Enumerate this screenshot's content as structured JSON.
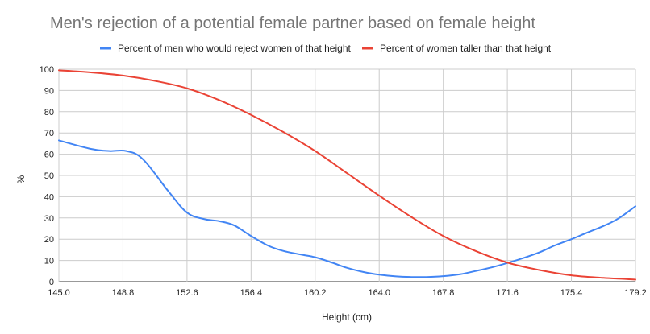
{
  "chart_data": {
    "type": "line",
    "title": "Men's rejection of a potential female partner based on female height",
    "xlabel": "Height (cm)",
    "ylabel": "%",
    "xlim": [
      145.0,
      179.2
    ],
    "ylim": [
      0,
      100
    ],
    "x_ticks": [
      "145.0",
      "148.8",
      "152.6",
      "156.4",
      "160.2",
      "164.0",
      "167.8",
      "171.6",
      "175.4",
      "179.2"
    ],
    "y_ticks": [
      "0",
      "10",
      "20",
      "30",
      "40",
      "50",
      "60",
      "70",
      "80",
      "90",
      "100"
    ],
    "grid": true,
    "legend_position": "top",
    "series": [
      {
        "name": "Percent of men who would reject women of that height",
        "color": "#4285f4",
        "x": [
          145.0,
          146.9,
          148.0,
          149.0,
          150.0,
          151.5,
          152.6,
          153.6,
          154.5,
          155.4,
          156.4,
          157.4,
          158.3,
          159.2,
          160.2,
          161.2,
          162.1,
          163.1,
          164.0,
          165.0,
          165.9,
          166.8,
          167.8,
          168.8,
          169.7,
          170.7,
          171.6,
          172.5,
          173.5,
          174.4,
          175.4,
          176.3,
          177.3,
          178.2,
          179.2
        ],
        "values": [
          66.5,
          62.5,
          61.5,
          61.5,
          57.5,
          42.5,
          32.5,
          29.5,
          28.5,
          26.5,
          21.5,
          17.0,
          14.5,
          13.0,
          11.5,
          9.0,
          6.5,
          4.5,
          3.3,
          2.5,
          2.2,
          2.2,
          2.6,
          3.5,
          5.0,
          6.8,
          8.8,
          11.0,
          13.8,
          17.0,
          20.0,
          23.0,
          26.2,
          29.8,
          35.5
        ]
      },
      {
        "name": "Percent of women taller than that height",
        "color": "#ea4335",
        "x": [
          145.0,
          146.9,
          148.8,
          150.7,
          152.6,
          154.5,
          156.4,
          158.3,
          160.2,
          162.1,
          164.0,
          165.9,
          167.8,
          169.7,
          171.6,
          173.5,
          175.4,
          177.3,
          179.2
        ],
        "values": [
          99.5,
          98.5,
          97.0,
          94.5,
          91.0,
          85.5,
          78.5,
          70.5,
          61.5,
          51.0,
          40.5,
          30.5,
          21.5,
          14.5,
          9.0,
          5.5,
          3.0,
          1.8,
          1.0
        ]
      }
    ]
  }
}
